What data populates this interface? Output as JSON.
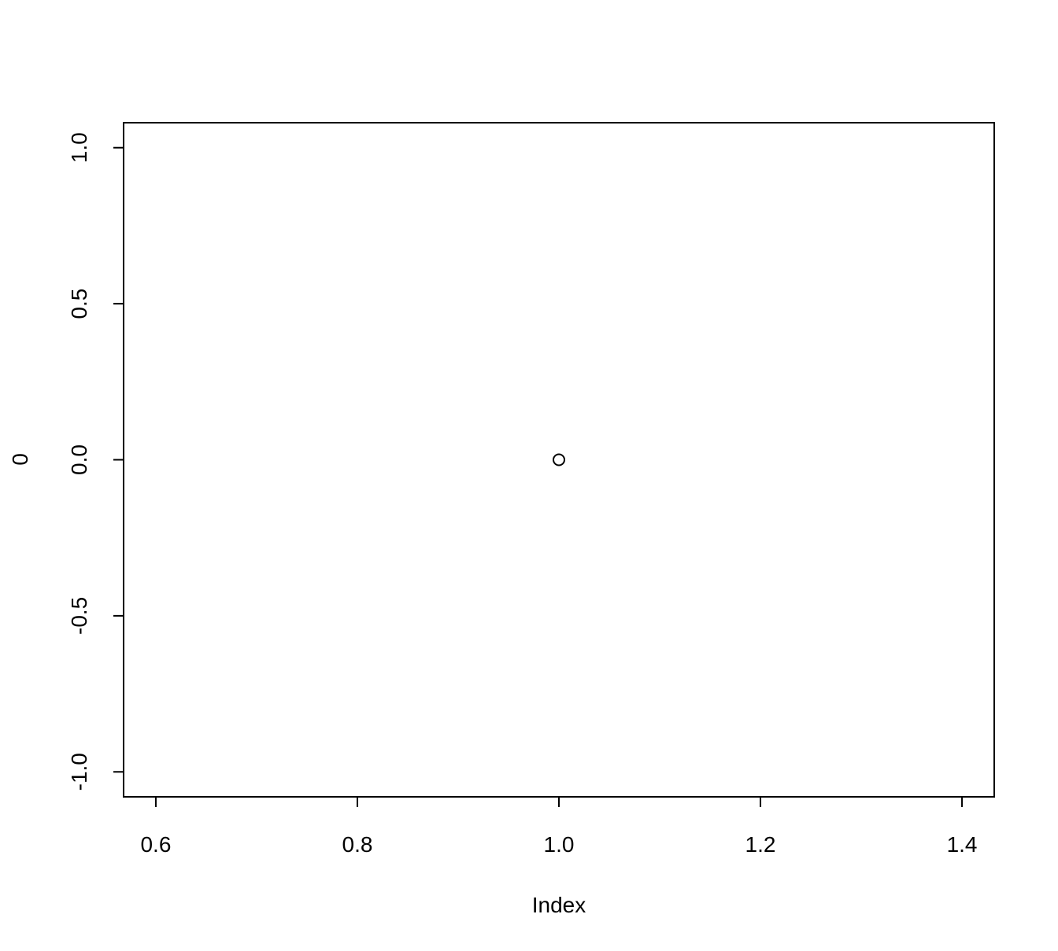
{
  "chart_data": {
    "type": "scatter",
    "title": "",
    "xlabel": "Index",
    "ylabel": "0",
    "xlim": [
      0.568,
      1.432
    ],
    "ylim": [
      -1.08,
      1.08
    ],
    "x_ticks": [
      0.6,
      0.8,
      1.0,
      1.2,
      1.4
    ],
    "x_tick_labels": [
      "0.6",
      "0.8",
      "1.0",
      "1.2",
      "1.4"
    ],
    "y_ticks": [
      -1.0,
      -0.5,
      0.0,
      0.5,
      1.0
    ],
    "y_tick_labels": [
      "-1.0",
      "-0.5",
      "0.0",
      "0.5",
      "1.0"
    ],
    "grid": false,
    "marker": "open-circle",
    "points": [
      {
        "x": 1.0,
        "y": 0.0
      }
    ],
    "colors": {
      "foreground": "#000000",
      "background": "#ffffff"
    }
  }
}
